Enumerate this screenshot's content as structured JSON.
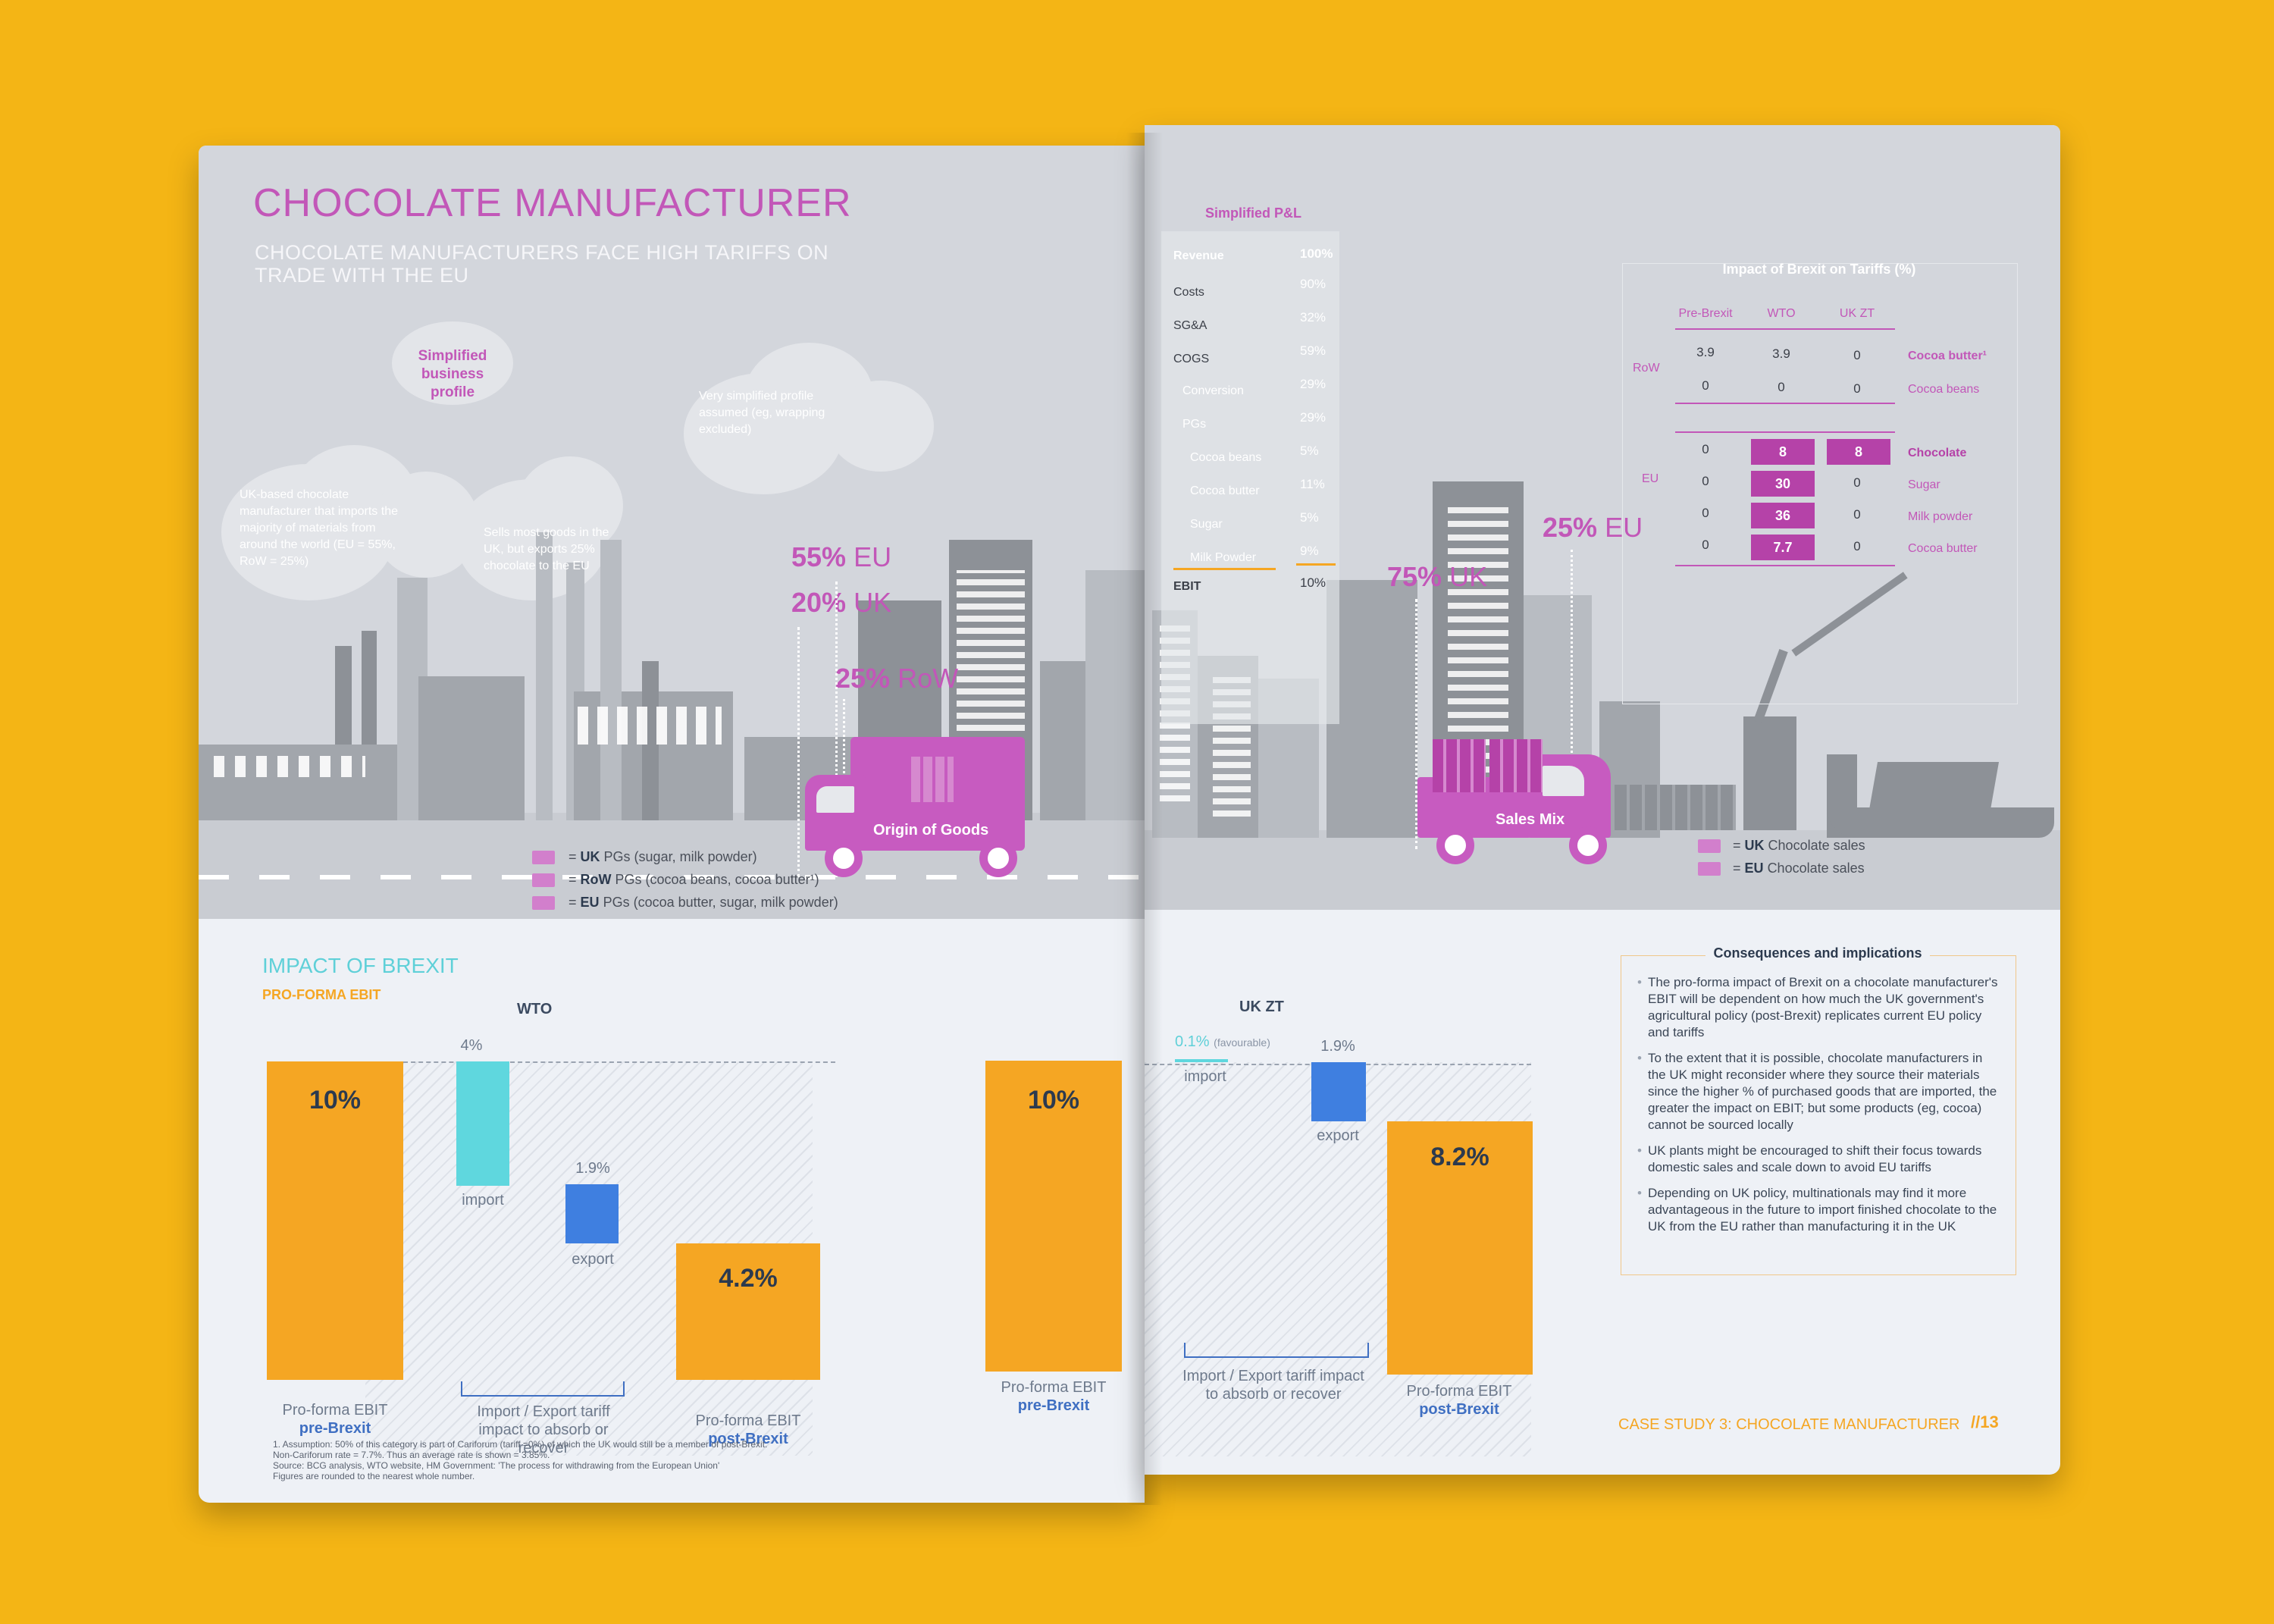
{
  "left": {
    "title": "CHOCOLATE MANUFACTURER",
    "subtitle": "CHOCOLATE MANUFACTURERS FACE HIGH TARIFFS ON TRADE WITH THE EU",
    "clouds": {
      "profile": "Simplified business profile",
      "uk_based": "UK-based chocolate manufacturer that imports the majority of materials from around the world (EU = 55%, RoW = 25%)",
      "sells": "Sells most goods in the UK, but exports 25% chocolate to the EU",
      "very_simplified": "Very simplified profile assumed (eg, wrapping excluded)"
    },
    "origin": {
      "uk_pct": "20%",
      "uk_lbl": "UK",
      "row_pct": "25%",
      "row_lbl": "RoW",
      "eu_pct": "55%",
      "eu_lbl": "EU",
      "truck_label": "Origin of Goods"
    },
    "legend": [
      {
        "eq": "=",
        "key": "UK",
        "text": "PGs (sugar, milk powder)"
      },
      {
        "eq": "=",
        "key": "RoW",
        "text": "PGs (cocoa beans, cocoa butter¹)"
      },
      {
        "eq": "=",
        "key": "EU",
        "text": "PGs (cocoa butter, sugar, milk powder)"
      }
    ],
    "impact_title": "IMPACT OF BREXIT",
    "impact_sub": "PRO-FORMA EBIT",
    "wto_label": "WTO",
    "wto_chart": {
      "pre_value": "10%",
      "import_value": "4%",
      "import_label": "import",
      "export_value": "1.9%",
      "export_label": "export",
      "post_value": "4.2%",
      "pre_caption": "Pro-forma EBIT",
      "pre_caption_b": "pre-Brexit",
      "mid_caption": "Import / Export tariff impact to absorb or recover",
      "post_caption": "Pro-forma EBIT",
      "post_caption_b": "post-Brexit"
    },
    "footnote": [
      "1. Assumption: 50% of this category is part of Cariforum (tariff =0%) of which the UK would still be a member of post-Brexit.",
      "Non-Cariforum rate = 7.7%. Thus an average rate is shown = 3.85%.",
      "Source: BCG analysis, WTO website, HM Government: 'The process for withdrawing from the European Union'",
      "Figures are rounded to the nearest whole number."
    ]
  },
  "right": {
    "pl": {
      "title": "Simplified P&L",
      "rows": [
        {
          "label": "Revenue",
          "value": "100%"
        },
        {
          "label": "Costs",
          "value": "90%"
        },
        {
          "label": "SG&A",
          "value": "32%"
        },
        {
          "label": "COGS",
          "value": "59%"
        },
        {
          "label": "Conversion",
          "value": "29%"
        },
        {
          "label": "PGs",
          "value": "29%"
        },
        {
          "label": "Cocoa beans",
          "value": "5%"
        },
        {
          "label": "Cocoa butter",
          "value": "11%"
        },
        {
          "label": "Sugar",
          "value": "5%"
        },
        {
          "label": "Milk Powder",
          "value": "9%"
        },
        {
          "label": "EBIT",
          "value": "10%"
        }
      ]
    },
    "sales": {
      "uk_pct": "75%",
      "uk_lbl": "UK",
      "eu_pct": "25%",
      "eu_lbl": "EU",
      "truck_label": "Sales Mix"
    },
    "tariff": {
      "title": "Impact of Brexit on Tariffs (%)",
      "headers": [
        "Pre-Brexit",
        "WTO",
        "UK ZT"
      ],
      "row_group": "RoW",
      "eu_group": "EU",
      "rows": [
        {
          "vals": [
            "3.9",
            "3.9",
            "0"
          ],
          "label": "Cocoa butter¹"
        },
        {
          "vals": [
            "0",
            "0",
            "0"
          ],
          "label": "Cocoa beans"
        },
        {
          "vals": [
            "0",
            "8",
            "8"
          ],
          "label": "Chocolate"
        },
        {
          "vals": [
            "0",
            "30",
            "0"
          ],
          "label": "Sugar"
        },
        {
          "vals": [
            "0",
            "36",
            "0"
          ],
          "label": "Milk powder"
        },
        {
          "vals": [
            "0",
            "7.7",
            "0"
          ],
          "label": "Cocoa butter"
        }
      ]
    },
    "legend": [
      {
        "eq": "=",
        "key": "UK",
        "text": "Chocolate sales"
      },
      {
        "eq": "=",
        "key": "EU",
        "text": "Chocolate sales"
      }
    ],
    "ukzt_label": "UK ZT",
    "ukzt_chart": {
      "pre_value": "10%",
      "import_value": "0.1%",
      "import_note": "(favourable)",
      "import_label": "import",
      "export_value": "1.9%",
      "export_label": "export",
      "post_value": "8.2%",
      "pre_caption": "Pro-forma EBIT",
      "pre_caption_b": "pre-Brexit",
      "mid_caption": "Import / Export tariff impact to absorb or recover",
      "post_caption": "Pro-forma EBIT",
      "post_caption_b": "post-Brexit"
    },
    "consequences": {
      "title": "Consequences and implications",
      "bullets": [
        "The pro-forma impact of Brexit on a chocolate manufacturer's EBIT will be dependent on how much the UK government's agricultural policy (post-Brexit) replicates current EU policy and tariffs",
        "To the extent that it is possible, chocolate manufacturers in the UK might reconsider where they source their materials since the higher % of purchased goods that are imported, the greater the impact on EBIT; but some products (eg, cocoa) cannot be sourced locally",
        "UK plants might be encouraged to shift their focus towards domestic sales and scale down to avoid EU tariffs",
        "Depending on UK policy, multinationals may find it more advantageous in the future to import finished chocolate to the UK from the EU rather than manufacturing it in the UK"
      ]
    },
    "footer": "CASE STUDY 3: CHOCOLATE MANUFACTURER",
    "page_number": "//13"
  }
}
